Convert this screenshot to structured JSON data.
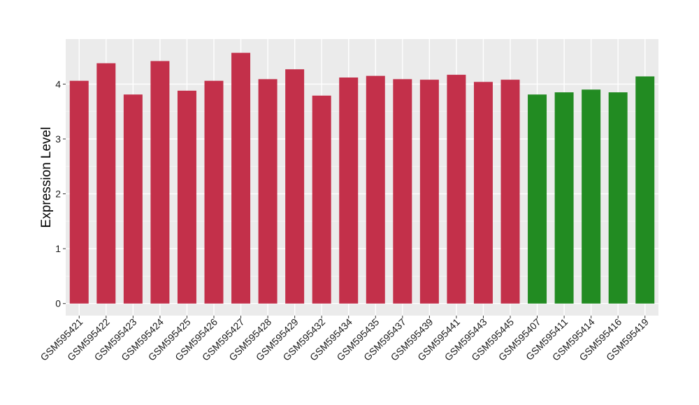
{
  "chart_data": {
    "type": "bar",
    "ylabel": "Expression Level",
    "xlabel": "",
    "ylim": [
      -0.22,
      4.82
    ],
    "yticks": [
      0,
      1,
      2,
      3,
      4
    ],
    "grid": true,
    "legend": "none",
    "colors": {
      "panel": "#EBEBEB",
      "grid_major": "#FFFFFF",
      "grid_minor": "#F5F5F5",
      "tick": "#333333",
      "group1": "#C3304A",
      "group2": "#228B22"
    },
    "categories": [
      "GSM595421",
      "GSM595422",
      "GSM595423",
      "GSM595424",
      "GSM595425",
      "GSM595426",
      "GSM595427",
      "GSM595428",
      "GSM595429",
      "GSM595432",
      "GSM595434",
      "GSM595435",
      "GSM595437",
      "GSM595439",
      "GSM595441",
      "GSM595443",
      "GSM595445",
      "GSM595407",
      "GSM595411",
      "GSM595414",
      "GSM595416",
      "GSM595419"
    ],
    "values": [
      4.06,
      4.38,
      3.81,
      4.42,
      3.88,
      4.06,
      4.57,
      4.09,
      4.27,
      3.79,
      4.12,
      4.15,
      4.09,
      4.08,
      4.17,
      4.04,
      4.08,
      3.81,
      3.85,
      3.9,
      3.85,
      4.14
    ],
    "groups": [
      "group1",
      "group1",
      "group1",
      "group1",
      "group1",
      "group1",
      "group1",
      "group1",
      "group1",
      "group1",
      "group1",
      "group1",
      "group1",
      "group1",
      "group1",
      "group1",
      "group1",
      "group2",
      "group2",
      "group2",
      "group2",
      "group2"
    ]
  }
}
